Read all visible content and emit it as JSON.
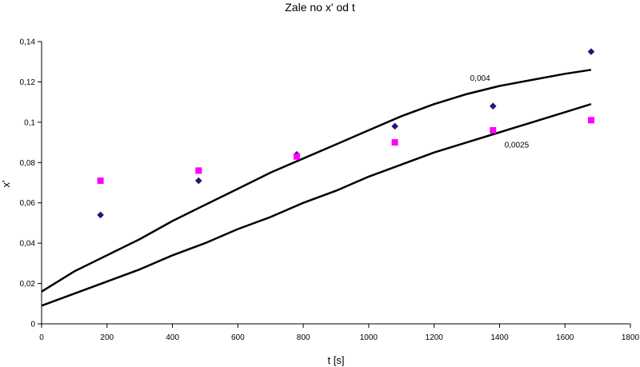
{
  "chart_data": {
    "type": "scatter",
    "title": "Zale  no     x' od t",
    "xlabel": "t [s]",
    "ylabel": "x'",
    "xlim": [
      0,
      1800
    ],
    "ylim": [
      0,
      0.14
    ],
    "x_ticks": [
      0,
      200,
      400,
      600,
      800,
      1000,
      1200,
      1400,
      1600,
      1800
    ],
    "x_tick_labels": [
      "0",
      "200",
      "400",
      "600",
      "800",
      "1000",
      "1200",
      "1400",
      "1600",
      "1800"
    ],
    "y_ticks": [
      0,
      0.02,
      0.04,
      0.06,
      0.08,
      0.1,
      0.12,
      0.14
    ],
    "y_tick_labels": [
      "0",
      "0,02",
      "0,04",
      "0,06",
      "0,08",
      "0,1",
      "0,12",
      "0,14"
    ],
    "grid": false,
    "legend": "none",
    "series": [
      {
        "kind": "points",
        "marker": "diamond",
        "color": "#1a1a80",
        "x": [
          180,
          480,
          780,
          1080,
          1380,
          1680
        ],
        "y": [
          0.054,
          0.071,
          0.084,
          0.098,
          0.108,
          0.135
        ]
      },
      {
        "kind": "points",
        "marker": "square",
        "color": "#ff00ff",
        "x": [
          180,
          480,
          780,
          1080,
          1380,
          1680
        ],
        "y": [
          0.071,
          0.076,
          0.083,
          0.09,
          0.096,
          0.101
        ]
      },
      {
        "kind": "curve",
        "color": "#000000",
        "x": [
          0,
          100,
          200,
          300,
          400,
          500,
          600,
          700,
          800,
          900,
          1000,
          1100,
          1200,
          1300,
          1400,
          1500,
          1600,
          1680
        ],
        "y": [
          0.016,
          0.026,
          0.034,
          0.042,
          0.051,
          0.059,
          0.067,
          0.075,
          0.082,
          0.089,
          0.096,
          0.103,
          0.109,
          0.114,
          0.118,
          0.121,
          0.124,
          0.126
        ]
      },
      {
        "kind": "curve",
        "color": "#000000",
        "x": [
          0,
          100,
          200,
          300,
          400,
          500,
          600,
          700,
          800,
          900,
          1000,
          1100,
          1200,
          1300,
          1400,
          1500,
          1600,
          1680
        ],
        "y": [
          0.009,
          0.015,
          0.021,
          0.027,
          0.034,
          0.04,
          0.047,
          0.053,
          0.06,
          0.066,
          0.073,
          0.079,
          0.085,
          0.09,
          0.095,
          0.1,
          0.105,
          0.109
        ]
      }
    ],
    "annotations": [
      {
        "text": "0,004",
        "x": 1310,
        "y": 0.1205
      },
      {
        "text": "0,0025",
        "x": 1415,
        "y": 0.0875
      }
    ]
  }
}
